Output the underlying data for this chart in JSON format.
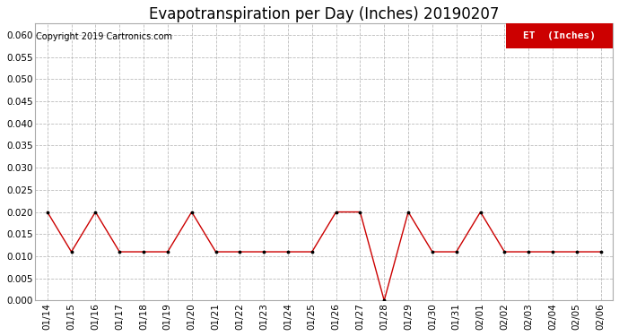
{
  "title": "Evapotranspiration per Day (Inches) 20190207",
  "copyright_text": "Copyright 2019 Cartronics.com",
  "legend_label": "ET  (Inches)",
  "legend_bg_color": "#cc0000",
  "legend_text_color": "#ffffff",
  "line_color": "#cc0000",
  "marker_color": "#000000",
  "background_color": "#ffffff",
  "grid_color": "#bbbbbb",
  "ylim": [
    0.0,
    0.0625
  ],
  "yticks": [
    0.0,
    0.005,
    0.01,
    0.015,
    0.02,
    0.025,
    0.03,
    0.035,
    0.04,
    0.045,
    0.05,
    0.055,
    0.06
  ],
  "dates": [
    "01/14",
    "01/15",
    "01/16",
    "01/17",
    "01/18",
    "01/19",
    "01/20",
    "01/21",
    "01/22",
    "01/23",
    "01/24",
    "01/25",
    "01/26",
    "01/27",
    "01/28",
    "01/29",
    "01/30",
    "01/31",
    "02/01",
    "02/02",
    "02/03",
    "02/04",
    "02/05",
    "02/06"
  ],
  "values": [
    0.02,
    0.011,
    0.02,
    0.011,
    0.011,
    0.011,
    0.02,
    0.011,
    0.011,
    0.011,
    0.011,
    0.011,
    0.02,
    0.02,
    0.0,
    0.02,
    0.011,
    0.011,
    0.02,
    0.011,
    0.011,
    0.011,
    0.011,
    0.011
  ],
  "title_fontsize": 12,
  "copyright_fontsize": 7,
  "tick_fontsize": 7.5,
  "legend_fontsize": 8,
  "fig_width": 6.9,
  "fig_height": 3.75,
  "dpi": 100
}
